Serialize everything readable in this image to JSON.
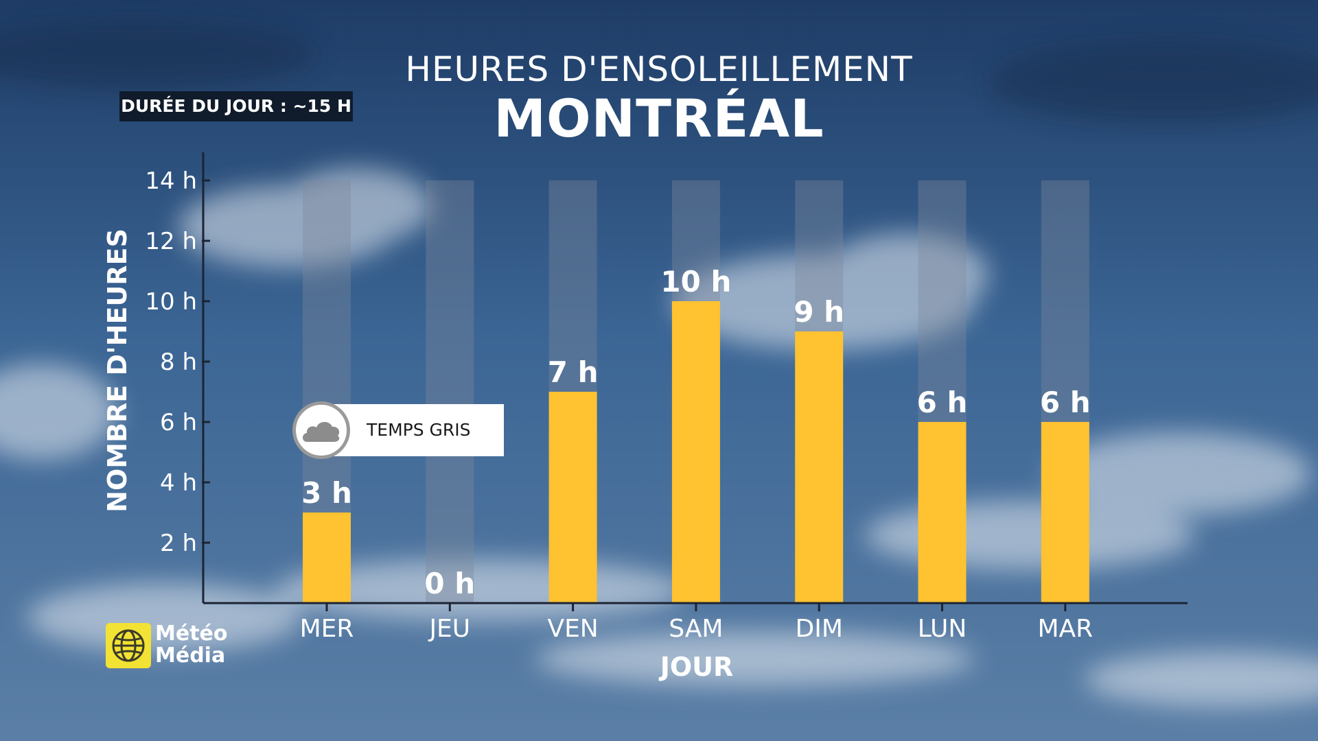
{
  "header": {
    "title": "HEURES D'ENSOLEILLEMENT",
    "city": "MONTRÉAL"
  },
  "day_length": "DURÉE DU JOUR : ~15 H",
  "badge": {
    "label": "TEMPS GRIS",
    "icon": "cloud-icon"
  },
  "logo": {
    "line1": "Météo",
    "line2": "Média"
  },
  "colors": {
    "bar": "#ffc231",
    "track": "#7e8a9a",
    "axis": "#1c2433",
    "text": "#ffffff"
  },
  "chart_data": {
    "type": "bar",
    "categories": [
      "MER",
      "JEU",
      "VEN",
      "SAM",
      "DIM",
      "LUN",
      "MAR"
    ],
    "values": [
      3,
      0,
      7,
      10,
      9,
      6,
      6
    ],
    "value_labels": [
      "3 h",
      "0 h",
      "7 h",
      "10 h",
      "9 h",
      "6 h",
      "6 h"
    ],
    "track_max": 14,
    "xlabel": "JOUR",
    "ylabel": "NOMBRE D'HEURES",
    "yticks": [
      2,
      4,
      6,
      8,
      10,
      12,
      14
    ],
    "ytick_labels": [
      "2 h",
      "4 h",
      "6 h",
      "8 h",
      "10 h",
      "12 h",
      "14 h"
    ],
    "ylim": [
      0,
      14
    ],
    "grid": false,
    "legend": "none"
  }
}
